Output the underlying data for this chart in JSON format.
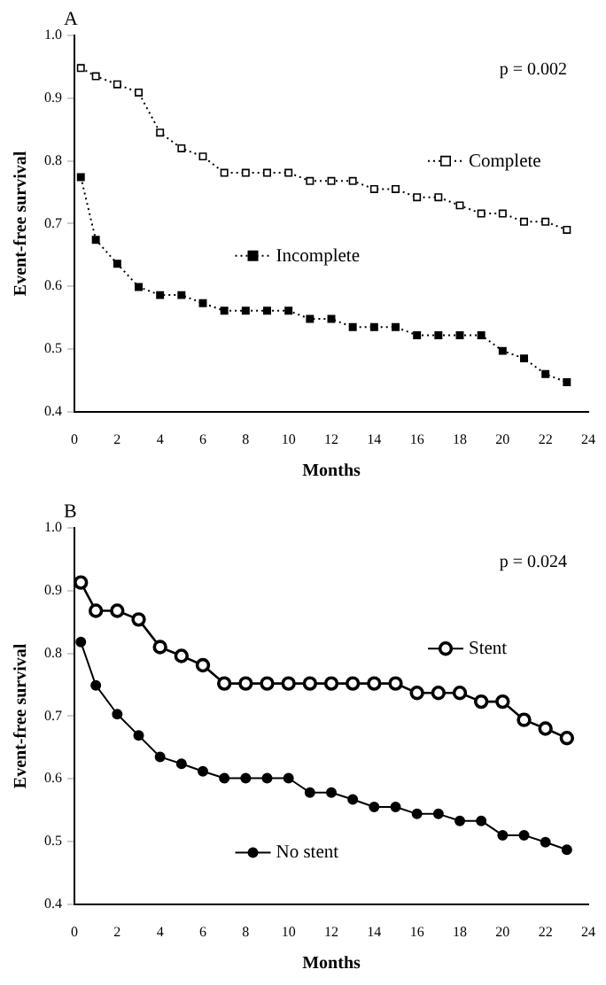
{
  "chart_data": [
    {
      "type": "line",
      "title": "A",
      "xlabel": "Months",
      "ylabel": "Event-free survival",
      "annotations": [
        "p = 0.002"
      ],
      "xlim": [
        0,
        24
      ],
      "xticks": [
        0,
        2,
        4,
        6,
        8,
        10,
        12,
        14,
        16,
        18,
        20,
        22,
        24
      ],
      "ylim": [
        0.4,
        1.0
      ],
      "yticks": [
        {
          "value": 0.4,
          "label": "0.4"
        },
        {
          "value": 0.5,
          "label": "0.5"
        },
        {
          "value": 0.6,
          "label": "0.6"
        },
        {
          "value": 0.7,
          "label": "0.7"
        },
        {
          "value": 0.8,
          "label": "0.8"
        },
        {
          "value": 0.9,
          "label": "0.9"
        },
        {
          "value": 1.0,
          "label": "1.0"
        }
      ],
      "grid": false,
      "legend": "right",
      "marker": "square",
      "line_style": "dotted",
      "x": [
        0.3,
        1,
        2,
        3,
        4,
        5,
        6,
        7,
        8,
        9,
        10,
        11,
        12,
        13,
        14,
        15,
        16,
        17,
        18,
        19,
        20,
        21,
        22,
        23
      ],
      "series": [
        {
          "name": "Complete",
          "color": "#000000",
          "values": [
            0.948,
            0.935,
            0.922,
            0.909,
            0.845,
            0.82,
            0.807,
            0.781,
            0.781,
            0.781,
            0.781,
            0.768,
            0.768,
            0.768,
            0.755,
            0.755,
            0.742,
            0.742,
            0.729,
            0.716,
            0.716,
            0.703,
            0.703,
            0.69
          ]
        },
        {
          "name": "Incomplete",
          "color": "#000000",
          "values": [
            0.774,
            0.674,
            0.636,
            0.599,
            0.586,
            0.586,
            0.573,
            0.561,
            0.561,
            0.561,
            0.561,
            0.548,
            0.548,
            0.535,
            0.535,
            0.535,
            0.522,
            0.522,
            0.522,
            0.522,
            0.497,
            0.485,
            0.46,
            0.447
          ]
        }
      ]
    },
    {
      "type": "line",
      "title": "B",
      "xlabel": "Months",
      "ylabel": "Event-free survival",
      "annotations": [
        "p = 0.024"
      ],
      "xlim": [
        0,
        24
      ],
      "xticks": [
        0,
        2,
        4,
        6,
        8,
        10,
        12,
        14,
        16,
        18,
        20,
        22,
        24
      ],
      "ylim": [
        0.4,
        1.0
      ],
      "yticks": [
        {
          "value": 0.4,
          "label": "0.4"
        },
        {
          "value": 0.5,
          "label": "0.5"
        },
        {
          "value": 0.6,
          "label": "0.6"
        },
        {
          "value": 0.7,
          "label": "0.7"
        },
        {
          "value": 0.8,
          "label": "0.8"
        },
        {
          "value": 0.9,
          "label": "0.9"
        },
        {
          "value": 1.0,
          "label": "1.0"
        }
      ],
      "grid": false,
      "legend": "right",
      "marker": "circle",
      "line_style": "solid",
      "x": [
        0.3,
        1,
        2,
        3,
        4,
        5,
        6,
        7,
        8,
        9,
        10,
        11,
        12,
        13,
        14,
        15,
        16,
        17,
        18,
        19,
        20,
        21,
        22,
        23
      ],
      "series": [
        {
          "name": "Stent",
          "color": "#000000",
          "values": [
            0.913,
            0.868,
            0.868,
            0.854,
            0.81,
            0.796,
            0.781,
            0.752,
            0.752,
            0.752,
            0.752,
            0.752,
            0.752,
            0.752,
            0.752,
            0.752,
            0.737,
            0.737,
            0.737,
            0.723,
            0.723,
            0.694,
            0.68,
            0.665
          ]
        },
        {
          "name": "No stent",
          "color": "#000000",
          "values": [
            0.818,
            0.749,
            0.703,
            0.669,
            0.635,
            0.624,
            0.612,
            0.601,
            0.601,
            0.601,
            0.601,
            0.578,
            0.578,
            0.567,
            0.555,
            0.555,
            0.544,
            0.544,
            0.533,
            0.533,
            0.51,
            0.51,
            0.499,
            0.487
          ]
        }
      ]
    }
  ]
}
